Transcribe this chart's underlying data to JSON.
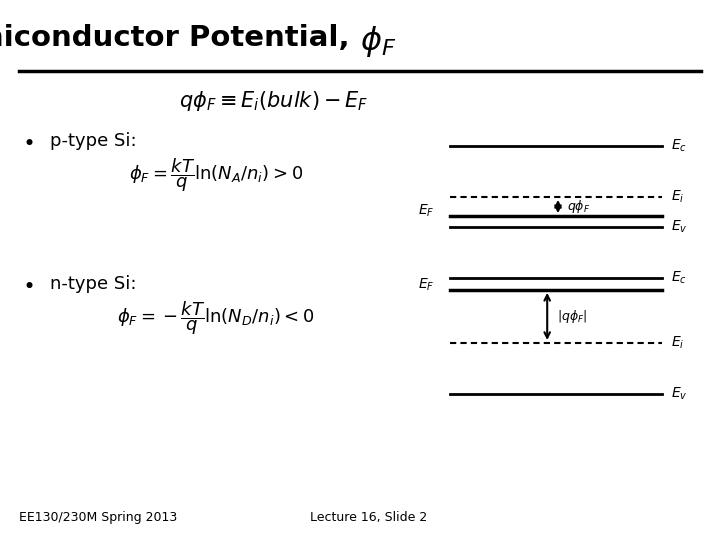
{
  "title_text": "Bulk Semiconductor Potential, ",
  "title_phi": "$\\phi_F$",
  "bg_color": "#ffffff",
  "text_color": "#000000",
  "footer_left": "EE130/230M Spring 2013",
  "footer_right": "Lecture 16, Slide 2",
  "line_color": "#000000"
}
